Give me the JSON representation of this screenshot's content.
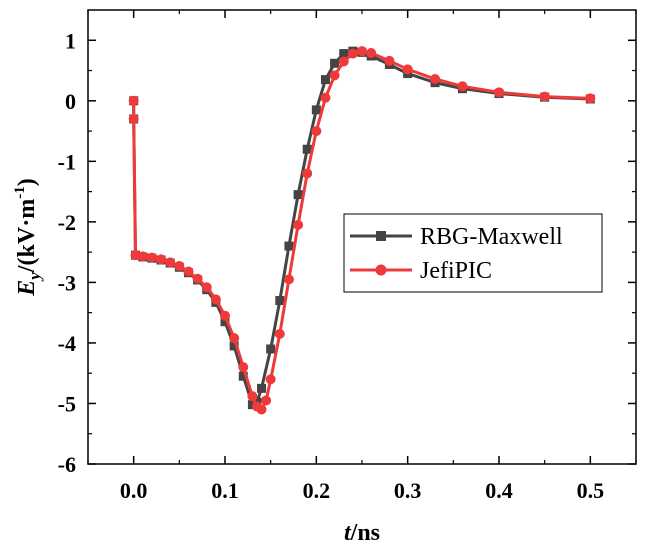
{
  "chart_data": {
    "type": "line",
    "xlabel_var": "t",
    "xlabel_unit": "/ns",
    "ylabel_var": "E",
    "ylabel_sub": "y",
    "ylabel_unit": "/(kV·m",
    "ylabel_sup": "-1",
    "ylabel_close": ")",
    "xlim": [
      -0.05,
      0.55
    ],
    "ylim": [
      -6,
      1.5
    ],
    "xticks": [
      "0.0",
      "0.1",
      "0.2",
      "0.3",
      "0.4",
      "0.5"
    ],
    "yticks": [
      "1",
      "0",
      "-1",
      "-2",
      "-3",
      "-4",
      "-5",
      "-6"
    ],
    "legend_position": "right-middle",
    "grid": false,
    "series": [
      {
        "name": "RBG-Maxwell",
        "color": "#444444",
        "marker": "square",
        "points": [
          [
            0.0,
            0.0
          ],
          [
            0.0,
            -0.3
          ],
          [
            0.002,
            -2.55
          ],
          [
            0.01,
            -2.58
          ],
          [
            0.02,
            -2.6
          ],
          [
            0.03,
            -2.63
          ],
          [
            0.04,
            -2.68
          ],
          [
            0.05,
            -2.75
          ],
          [
            0.06,
            -2.84
          ],
          [
            0.07,
            -2.96
          ],
          [
            0.08,
            -3.12
          ],
          [
            0.09,
            -3.33
          ],
          [
            0.1,
            -3.65
          ],
          [
            0.11,
            -4.05
          ],
          [
            0.12,
            -4.55
          ],
          [
            0.13,
            -5.02
          ],
          [
            0.135,
            -4.98
          ],
          [
            0.14,
            -4.75
          ],
          [
            0.15,
            -4.1
          ],
          [
            0.16,
            -3.3
          ],
          [
            0.17,
            -2.4
          ],
          [
            0.18,
            -1.55
          ],
          [
            0.19,
            -0.8
          ],
          [
            0.2,
            -0.15
          ],
          [
            0.21,
            0.35
          ],
          [
            0.22,
            0.62
          ],
          [
            0.23,
            0.78
          ],
          [
            0.24,
            0.82
          ],
          [
            0.25,
            0.8
          ],
          [
            0.26,
            0.74
          ],
          [
            0.28,
            0.6
          ],
          [
            0.3,
            0.45
          ],
          [
            0.33,
            0.3
          ],
          [
            0.36,
            0.2
          ],
          [
            0.4,
            0.12
          ],
          [
            0.45,
            0.06
          ],
          [
            0.5,
            0.03
          ]
        ]
      },
      {
        "name": "JefiPIC",
        "color": "#ee3a3a",
        "marker": "circle",
        "points": [
          [
            0.0,
            0.0
          ],
          [
            0.0,
            -0.3
          ],
          [
            0.002,
            -2.55
          ],
          [
            0.01,
            -2.57
          ],
          [
            0.02,
            -2.59
          ],
          [
            0.03,
            -2.62
          ],
          [
            0.04,
            -2.67
          ],
          [
            0.05,
            -2.73
          ],
          [
            0.06,
            -2.82
          ],
          [
            0.07,
            -2.94
          ],
          [
            0.08,
            -3.08
          ],
          [
            0.09,
            -3.28
          ],
          [
            0.1,
            -3.55
          ],
          [
            0.11,
            -3.92
          ],
          [
            0.12,
            -4.4
          ],
          [
            0.13,
            -4.88
          ],
          [
            0.135,
            -5.05
          ],
          [
            0.14,
            -5.1
          ],
          [
            0.145,
            -4.95
          ],
          [
            0.15,
            -4.6
          ],
          [
            0.16,
            -3.85
          ],
          [
            0.17,
            -2.95
          ],
          [
            0.18,
            -2.05
          ],
          [
            0.19,
            -1.2
          ],
          [
            0.2,
            -0.5
          ],
          [
            0.21,
            0.05
          ],
          [
            0.22,
            0.42
          ],
          [
            0.23,
            0.65
          ],
          [
            0.24,
            0.78
          ],
          [
            0.25,
            0.82
          ],
          [
            0.26,
            0.79
          ],
          [
            0.28,
            0.66
          ],
          [
            0.3,
            0.52
          ],
          [
            0.33,
            0.36
          ],
          [
            0.36,
            0.24
          ],
          [
            0.4,
            0.14
          ],
          [
            0.45,
            0.07
          ],
          [
            0.5,
            0.04
          ]
        ]
      }
    ]
  }
}
